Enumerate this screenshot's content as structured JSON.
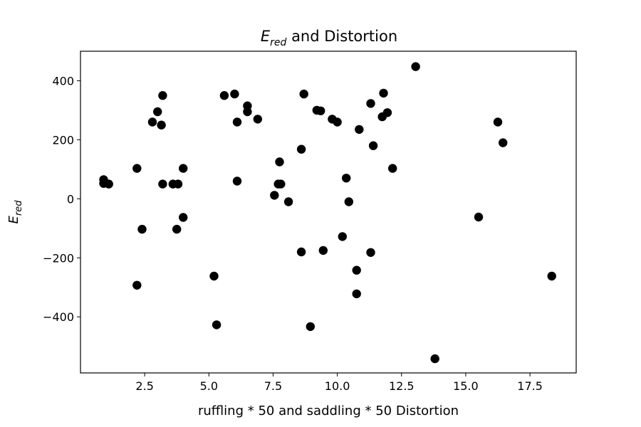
{
  "chart_data": {
    "type": "scatter",
    "title": {
      "symbol": "E",
      "subscript": "red",
      "rest": " and Distortion"
    },
    "xlabel": "ruffling * 50 and saddling * 50 Distortion",
    "ylabel": {
      "symbol": "E",
      "subscript": "red"
    },
    "xlim": [
      0.0,
      19.3
    ],
    "ylim": [
      -590,
      500
    ],
    "xticks": [
      2.5,
      5.0,
      7.5,
      10.0,
      12.5,
      15.0,
      17.5
    ],
    "xtick_labels": [
      "2.5",
      "5.0",
      "7.5",
      "10.0",
      "12.5",
      "15.0",
      "17.5"
    ],
    "yticks": [
      -400,
      -200,
      0,
      200,
      400
    ],
    "ytick_labels": [
      "−400",
      "−200",
      "0",
      "200",
      "400"
    ],
    "grid": false,
    "marker_color": "#000000",
    "points": [
      {
        "x": 0.9,
        "y": 65
      },
      {
        "x": 0.9,
        "y": 52
      },
      {
        "x": 1.1,
        "y": 50
      },
      {
        "x": 2.2,
        "y": 103
      },
      {
        "x": 2.2,
        "y": -293
      },
      {
        "x": 2.4,
        "y": -103
      },
      {
        "x": 2.8,
        "y": 260
      },
      {
        "x": 3.0,
        "y": 295
      },
      {
        "x": 3.15,
        "y": 250
      },
      {
        "x": 3.2,
        "y": 350
      },
      {
        "x": 3.2,
        "y": 50
      },
      {
        "x": 3.6,
        "y": 50
      },
      {
        "x": 3.75,
        "y": -103
      },
      {
        "x": 3.8,
        "y": 50
      },
      {
        "x": 4.0,
        "y": 103
      },
      {
        "x": 4.0,
        "y": -63
      },
      {
        "x": 5.2,
        "y": -262
      },
      {
        "x": 5.3,
        "y": -427
      },
      {
        "x": 5.6,
        "y": 350
      },
      {
        "x": 6.0,
        "y": 355
      },
      {
        "x": 6.1,
        "y": 260
      },
      {
        "x": 6.1,
        "y": 60
      },
      {
        "x": 6.5,
        "y": 315
      },
      {
        "x": 6.5,
        "y": 295
      },
      {
        "x": 6.9,
        "y": 270
      },
      {
        "x": 7.55,
        "y": 12
      },
      {
        "x": 7.7,
        "y": 50
      },
      {
        "x": 7.75,
        "y": 125
      },
      {
        "x": 7.8,
        "y": 50
      },
      {
        "x": 8.1,
        "y": -10
      },
      {
        "x": 8.6,
        "y": 168
      },
      {
        "x": 8.6,
        "y": -180
      },
      {
        "x": 8.7,
        "y": 355
      },
      {
        "x": 8.95,
        "y": -433
      },
      {
        "x": 9.2,
        "y": 300
      },
      {
        "x": 9.35,
        "y": 298
      },
      {
        "x": 9.45,
        "y": -175
      },
      {
        "x": 9.8,
        "y": 270
      },
      {
        "x": 10.0,
        "y": 260
      },
      {
        "x": 10.2,
        "y": -128
      },
      {
        "x": 10.35,
        "y": 70
      },
      {
        "x": 10.45,
        "y": -10
      },
      {
        "x": 10.75,
        "y": -242
      },
      {
        "x": 10.75,
        "y": -322
      },
      {
        "x": 10.85,
        "y": 235
      },
      {
        "x": 11.3,
        "y": 323
      },
      {
        "x": 11.3,
        "y": -182
      },
      {
        "x": 11.4,
        "y": 180
      },
      {
        "x": 11.75,
        "y": 278
      },
      {
        "x": 11.8,
        "y": 358
      },
      {
        "x": 11.95,
        "y": 292
      },
      {
        "x": 12.15,
        "y": 103
      },
      {
        "x": 13.05,
        "y": 448
      },
      {
        "x": 13.8,
        "y": -542
      },
      {
        "x": 15.5,
        "y": -62
      },
      {
        "x": 16.25,
        "y": 260
      },
      {
        "x": 16.45,
        "y": 190
      },
      {
        "x": 18.35,
        "y": -262
      }
    ]
  }
}
